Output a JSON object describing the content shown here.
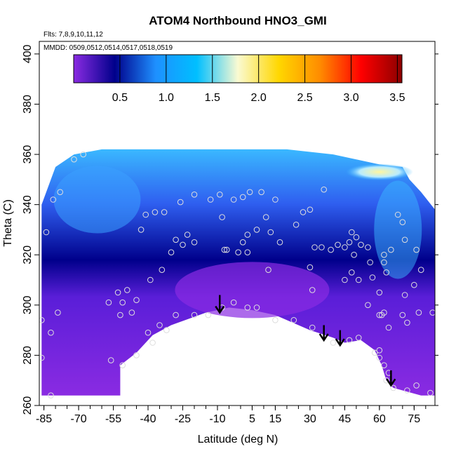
{
  "chart_data": {
    "type": "heatmap",
    "title": "ATOM4 Northbound HNO3_GMI",
    "annotations": [
      "Flts: 7,8,9,10,11,12",
      "MMDD: 0509,0512,0514,0517,0518,0519"
    ],
    "xlabel": "Latitude (deg N)",
    "ylabel": "Theta (C)",
    "xlim": [
      -87,
      84
    ],
    "ylim": [
      260,
      405
    ],
    "x_ticks": [
      -85,
      -70,
      -55,
      -40,
      -25,
      -10,
      5,
      15,
      30,
      45,
      60,
      75
    ],
    "y_ticks": [
      260,
      280,
      300,
      320,
      340,
      360,
      380,
      400
    ],
    "colorbar": {
      "range": [
        0,
        3.55
      ],
      "ticks": [
        0.5,
        1.0,
        1.5,
        2.0,
        2.5,
        3.0,
        3.5
      ],
      "tick_labels": [
        "0.5",
        "1.0",
        "1.5",
        "2.0",
        "2.5",
        "3.0",
        "3.5"
      ],
      "colors": [
        "#8a2be2",
        "#00008b",
        "#1e90ff",
        "#00bfff",
        "#fafad2",
        "#ffd700",
        "#ff8c00",
        "#ff0000",
        "#8b0000"
      ]
    },
    "colors": {
      "background_field": "#8a2be2",
      "low_level_field": "#00008b",
      "mid_level_field": "#2f5ff0",
      "high_level_field": "#3ab8ff",
      "observation_marker": "#dddddd",
      "arrow": "#000000"
    },
    "observations": [
      {
        "x": -86,
        "y": 294
      },
      {
        "x": -86,
        "y": 279
      },
      {
        "x": -82,
        "y": 289
      },
      {
        "x": -79,
        "y": 297
      },
      {
        "x": -84,
        "y": 329
      },
      {
        "x": -81,
        "y": 342
      },
      {
        "x": -78,
        "y": 345
      },
      {
        "x": -72,
        "y": 358
      },
      {
        "x": -68,
        "y": 360
      },
      {
        "x": -57,
        "y": 301
      },
      {
        "x": -53,
        "y": 305
      },
      {
        "x": -51,
        "y": 301
      },
      {
        "x": -49,
        "y": 306
      },
      {
        "x": -47,
        "y": 297
      },
      {
        "x": -45,
        "y": 302
      },
      {
        "x": -52,
        "y": 296
      },
      {
        "x": -51,
        "y": 276
      },
      {
        "x": -56,
        "y": 278
      },
      {
        "x": -45,
        "y": 280
      },
      {
        "x": -40,
        "y": 289
      },
      {
        "x": -35,
        "y": 292
      },
      {
        "x": -39,
        "y": 310
      },
      {
        "x": -34,
        "y": 314
      },
      {
        "x": -30,
        "y": 321
      },
      {
        "x": -28,
        "y": 326
      },
      {
        "x": -25,
        "y": 324
      },
      {
        "x": -23,
        "y": 328
      },
      {
        "x": -20,
        "y": 325
      },
      {
        "x": -43,
        "y": 330
      },
      {
        "x": -41,
        "y": 336
      },
      {
        "x": -37,
        "y": 337
      },
      {
        "x": -33,
        "y": 337
      },
      {
        "x": -26,
        "y": 341
      },
      {
        "x": -20,
        "y": 344
      },
      {
        "x": -13,
        "y": 342
      },
      {
        "x": -9,
        "y": 344
      },
      {
        "x": -8,
        "y": 335
      },
      {
        "x": -7,
        "y": 322
      },
      {
        "x": -6,
        "y": 322
      },
      {
        "x": -3,
        "y": 342
      },
      {
        "x": 1,
        "y": 343
      },
      {
        "x": 4,
        "y": 345
      },
      {
        "x": 3,
        "y": 328
      },
      {
        "x": 1,
        "y": 325
      },
      {
        "x": -1,
        "y": 321
      },
      {
        "x": 3,
        "y": 321
      },
      {
        "x": 7,
        "y": 330
      },
      {
        "x": 9,
        "y": 345
      },
      {
        "x": 11,
        "y": 335
      },
      {
        "x": 13,
        "y": 329
      },
      {
        "x": 15,
        "y": 342
      },
      {
        "x": 17,
        "y": 325
      },
      {
        "x": 12,
        "y": 314
      },
      {
        "x": 27,
        "y": 337
      },
      {
        "x": 30,
        "y": 338
      },
      {
        "x": 24,
        "y": 332
      },
      {
        "x": 32,
        "y": 323
      },
      {
        "x": 36,
        "y": 346
      },
      {
        "x": 35,
        "y": 323
      },
      {
        "x": 30,
        "y": 315
      },
      {
        "x": 31,
        "y": 306
      },
      {
        "x": 39,
        "y": 322
      },
      {
        "x": 42,
        "y": 324
      },
      {
        "x": 45,
        "y": 323
      },
      {
        "x": 48,
        "y": 329
      },
      {
        "x": 47,
        "y": 325
      },
      {
        "x": 49,
        "y": 320
      },
      {
        "x": 50,
        "y": 327
      },
      {
        "x": 52,
        "y": 324
      },
      {
        "x": 55,
        "y": 323
      },
      {
        "x": 56,
        "y": 317
      },
      {
        "x": 45,
        "y": 310
      },
      {
        "x": 48,
        "y": 313
      },
      {
        "x": 51,
        "y": 310
      },
      {
        "x": 57,
        "y": 311
      },
      {
        "x": 55,
        "y": 300
      },
      {
        "x": 60,
        "y": 305
      },
      {
        "x": 62,
        "y": 317
      },
      {
        "x": 62,
        "y": 320
      },
      {
        "x": 63,
        "y": 313
      },
      {
        "x": 65,
        "y": 322
      },
      {
        "x": 68,
        "y": 336
      },
      {
        "x": 70,
        "y": 333
      },
      {
        "x": 71,
        "y": 326
      },
      {
        "x": 71,
        "y": 304
      },
      {
        "x": 75,
        "y": 308
      },
      {
        "x": 76,
        "y": 322
      },
      {
        "x": 78,
        "y": 314
      },
      {
        "x": 77,
        "y": 297
      },
      {
        "x": 83,
        "y": 297
      },
      {
        "x": 70,
        "y": 296
      },
      {
        "x": 72,
        "y": 293
      },
      {
        "x": 60,
        "y": 296
      },
      {
        "x": 61,
        "y": 296
      },
      {
        "x": 62,
        "y": 297
      },
      {
        "x": 64,
        "y": 291
      },
      {
        "x": 60,
        "y": 282
      },
      {
        "x": 58,
        "y": 281
      },
      {
        "x": 60,
        "y": 279
      },
      {
        "x": 62,
        "y": 276
      },
      {
        "x": 64,
        "y": 273
      },
      {
        "x": 63,
        "y": 270
      },
      {
        "x": 66,
        "y": 267
      },
      {
        "x": 72,
        "y": 266
      },
      {
        "x": 76,
        "y": 268
      },
      {
        "x": 82,
        "y": 265
      },
      {
        "x": 40,
        "y": 285
      },
      {
        "x": 47,
        "y": 286
      },
      {
        "x": 51,
        "y": 287
      },
      {
        "x": 31,
        "y": 291
      },
      {
        "x": 23,
        "y": 294
      },
      {
        "x": 15,
        "y": 294
      },
      {
        "x": 7,
        "y": 299
      },
      {
        "x": 3,
        "y": 299
      },
      {
        "x": -3,
        "y": 301
      },
      {
        "x": -8,
        "y": 299
      },
      {
        "x": -14,
        "y": 296
      },
      {
        "x": -20,
        "y": 296
      },
      {
        "x": -28,
        "y": 296
      },
      {
        "x": -32,
        "y": 290
      },
      {
        "x": -38,
        "y": 285
      },
      {
        "x": -82,
        "y": 264
      }
    ],
    "arrows": [
      {
        "x": -9,
        "y_top": 304,
        "y_tip": 297
      },
      {
        "x": 36,
        "y_top": 292,
        "y_tip": 286
      },
      {
        "x": 43,
        "y_top": 290,
        "y_tip": 284
      },
      {
        "x": 65,
        "y_top": 274,
        "y_tip": 268
      }
    ],
    "data_region": {
      "top": [
        [
          -86,
          340
        ],
        [
          -80,
          355
        ],
        [
          -72,
          360
        ],
        [
          -60,
          362
        ],
        [
          -40,
          362
        ],
        [
          -20,
          362
        ],
        [
          0,
          362
        ],
        [
          20,
          362
        ],
        [
          40,
          360
        ],
        [
          60,
          356
        ],
        [
          70,
          355
        ],
        [
          73,
          350
        ],
        [
          78,
          345
        ],
        [
          84,
          338
        ]
      ],
      "bottom": [
        [
          -86,
          264
        ],
        [
          -52,
          264
        ],
        [
          -52,
          276
        ],
        [
          -45,
          281
        ],
        [
          -38,
          288
        ],
        [
          -30,
          292
        ],
        [
          -15,
          297
        ],
        [
          -5,
          299
        ],
        [
          5,
          298
        ],
        [
          15,
          296
        ],
        [
          30,
          290
        ],
        [
          40,
          287
        ],
        [
          45,
          285
        ],
        [
          52,
          286
        ],
        [
          58,
          282
        ],
        [
          61,
          276
        ],
        [
          63,
          270
        ],
        [
          66,
          267
        ],
        [
          70,
          266
        ],
        [
          78,
          264
        ],
        [
          84,
          264
        ]
      ]
    }
  }
}
